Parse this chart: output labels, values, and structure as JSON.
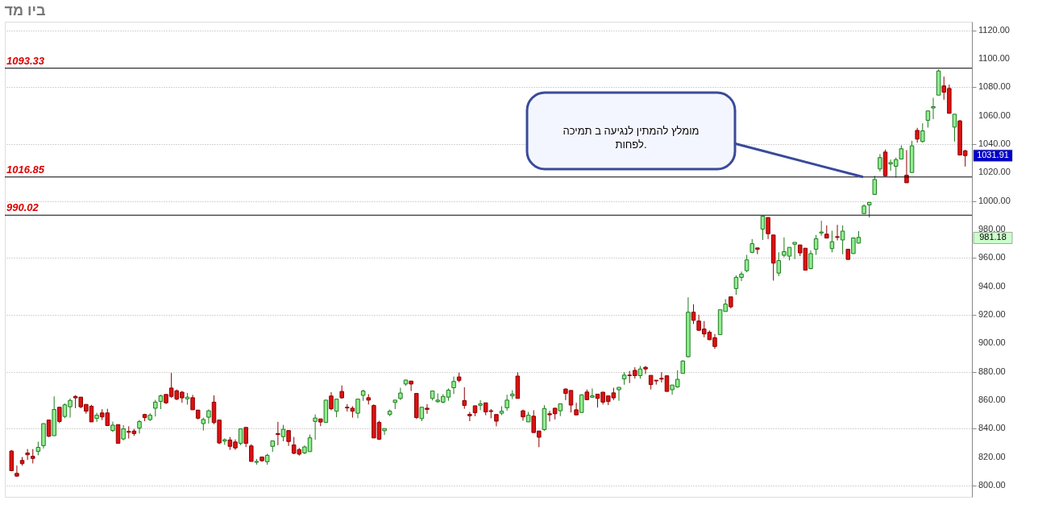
{
  "chart_data": {
    "type": "candlestick",
    "title": "ביו מד",
    "categories": [
      null,
      null,
      null,
      null,
      null,
      null,
      null,
      null,
      null,
      null,
      null,
      null,
      null,
      null,
      null,
      null,
      null,
      null,
      null,
      null,
      null,
      null,
      null,
      null,
      null,
      null,
      null,
      null,
      null,
      null,
      null,
      null,
      null,
      null,
      null,
      null,
      null,
      null,
      null,
      null,
      null,
      null,
      null,
      null,
      null,
      null,
      null,
      null,
      null,
      null,
      null,
      null,
      null,
      null,
      null,
      null,
      null,
      null,
      null,
      null,
      null,
      null,
      null,
      null,
      null,
      null,
      null,
      null,
      null,
      null,
      null,
      null,
      null,
      null,
      null,
      null,
      null,
      null,
      null,
      null,
      null,
      null,
      null,
      null,
      null,
      null,
      null,
      null,
      null,
      null,
      null,
      null,
      null,
      null,
      null,
      null,
      null,
      null,
      null,
      null,
      null,
      null,
      null,
      null,
      null,
      null,
      null,
      null,
      null,
      null,
      null,
      null,
      null,
      null,
      null,
      null,
      null,
      null,
      null,
      null,
      null,
      null,
      null,
      null,
      null,
      null,
      null,
      null,
      null,
      null,
      null,
      null,
      null,
      null,
      null,
      null,
      null,
      null,
      null,
      null,
      null,
      null,
      null,
      null,
      null,
      null,
      null,
      null,
      null,
      null,
      null,
      null,
      null,
      null,
      null,
      null,
      null,
      null,
      null,
      null,
      null,
      null,
      null,
      null,
      null,
      null,
      null,
      null,
      null,
      null,
      null,
      null,
      null,
      null,
      null,
      null,
      null,
      null,
      null,
      null
    ],
    "ohlc": [
      [
        824.2,
        825,
        810,
        810.4
      ],
      [
        808.5,
        814,
        806,
        806.6
      ],
      [
        817.6,
        820,
        814,
        815.3
      ],
      [
        822.8,
        825.6,
        818,
        821.6
      ],
      [
        820.5,
        825.6,
        815.5,
        819
      ],
      [
        824,
        830.8,
        821.2,
        826.8
      ],
      [
        828,
        843.5,
        826,
        843.5
      ],
      [
        846,
        846,
        834,
        834.6
      ],
      [
        835,
        862.6,
        835,
        853.4
      ],
      [
        855,
        855,
        843.8,
        845
      ],
      [
        848.5,
        857.7,
        847.3,
        856.7
      ],
      [
        855.3,
        861.2,
        847.7,
        859.8
      ],
      [
        862.6,
        863.5,
        854.3,
        861.6
      ],
      [
        862.1,
        862.1,
        854.3,
        855.3
      ],
      [
        857,
        857,
        850.4,
        852.2
      ],
      [
        855.7,
        856.7,
        844.7,
        844.7
      ],
      [
        847.1,
        851.1,
        844.7,
        849.4
      ],
      [
        851,
        853.6,
        846,
        848.2
      ],
      [
        851,
        853.9,
        841.7,
        842.1
      ],
      [
        838.6,
        844.9,
        837.6,
        842.4
      ],
      [
        842.8,
        842.8,
        829.6,
        829.6
      ],
      [
        832.7,
        842.4,
        831.7,
        839.8
      ],
      [
        838,
        841.6,
        833,
        837.4
      ],
      [
        838.3,
        839.8,
        834.8,
        836.5
      ],
      [
        840.3,
        846.1,
        836.5,
        844.9
      ],
      [
        849.9,
        850.4,
        845.2,
        847.7
      ],
      [
        846.3,
        850.8,
        845.2,
        849.4
      ],
      [
        854.3,
        860.2,
        848.5,
        858.6
      ],
      [
        859.1,
        863.8,
        853.7,
        863
      ],
      [
        864,
        864,
        857.3,
        858.1
      ],
      [
        868.5,
        879.1,
        861.6,
        862.6
      ],
      [
        866.6,
        867.5,
        860,
        860.7
      ],
      [
        865.6,
        866.4,
        858.1,
        861.6
      ],
      [
        860.9,
        865,
        856.8,
        862.1
      ],
      [
        861.7,
        863.7,
        853.2,
        853.2
      ],
      [
        853,
        853,
        846.4,
        847.3
      ],
      [
        843.5,
        847.7,
        838.6,
        846.4
      ],
      [
        848,
        853.4,
        843.5,
        852.5
      ],
      [
        858.6,
        863.3,
        843,
        844.2
      ],
      [
        846,
        846,
        829,
        829.9
      ],
      [
        831.2,
        833.1,
        828.6,
        832.2
      ],
      [
        832,
        834.1,
        825,
        827.5
      ],
      [
        830.6,
        832.4,
        825,
        826.4
      ],
      [
        829.6,
        839.8,
        828.3,
        839.8
      ],
      [
        840.8,
        840.8,
        827,
        829.6
      ],
      [
        827.8,
        829,
        816.9,
        816.9
      ],
      [
        816.3,
        818.6,
        814.6,
        816.9
      ],
      [
        820,
        820,
        816.6,
        817.4
      ],
      [
        816.7,
        822.3,
        814.6,
        821.2
      ],
      [
        827.5,
        831.3,
        823.6,
        831.3
      ],
      [
        836.5,
        844.7,
        828.3,
        835.8
      ],
      [
        834.3,
        842.6,
        831,
        839.5
      ],
      [
        838.6,
        838.6,
        827.8,
        830.9
      ],
      [
        828.5,
        834.1,
        822,
        822.6
      ],
      [
        825.2,
        826.4,
        821,
        822
      ],
      [
        822.9,
        828.1,
        822,
        827.1
      ],
      [
        823.8,
        835.8,
        823.8,
        833.5
      ],
      [
        845,
        850,
        832.2,
        847.4
      ],
      [
        846.8,
        846.8,
        841.7,
        844.6
      ],
      [
        844.3,
        860,
        844.3,
        860
      ],
      [
        862.9,
        865.6,
        852.9,
        853.9
      ],
      [
        852.2,
        860.7,
        848,
        860.7
      ],
      [
        866.1,
        870.3,
        861,
        861.6
      ],
      [
        855,
        857.2,
        852,
        854.5
      ],
      [
        854.3,
        855.7,
        847.7,
        852.2
      ],
      [
        850.8,
        860.7,
        847.3,
        860.7
      ],
      [
        863.3,
        867.3,
        859.5,
        866.4
      ],
      [
        861.7,
        864.2,
        856.9,
        860
      ],
      [
        856.2,
        857,
        833.4,
        833.4
      ],
      [
        844.3,
        845.5,
        832,
        832.5
      ],
      [
        838.5,
        840,
        835.5,
        840
      ],
      [
        849.9,
        853.4,
        848.7,
        852.2
      ],
      [
        858.4,
        860.3,
        853.7,
        860
      ],
      [
        861.2,
        868.7,
        860,
        865
      ],
      [
        871.3,
        874.4,
        870.1,
        874.1
      ],
      [
        873.4,
        873.4,
        866.4,
        871.3
      ],
      [
        864.7,
        864.7,
        846.8,
        847.7
      ],
      [
        847,
        855,
        845.2,
        855
      ],
      [
        854.3,
        857.2,
        850.4,
        853.5
      ],
      [
        861.2,
        866.4,
        859.8,
        866.4
      ],
      [
        858.9,
        864.7,
        858.1,
        860
      ],
      [
        858.6,
        864.2,
        857.7,
        862.6
      ],
      [
        862.1,
        868.2,
        859.5,
        867
      ],
      [
        868.7,
        876.6,
        864.3,
        873.1
      ],
      [
        876.3,
        879.3,
        872.5,
        873.9
      ],
      [
        859.7,
        869,
        853.9,
        856.3
      ],
      [
        850,
        851.7,
        845.2,
        849
      ],
      [
        856,
        856,
        848.7,
        851.1
      ],
      [
        856.3,
        860,
        852.9,
        857.4
      ],
      [
        858.1,
        858.1,
        849.4,
        851.7
      ],
      [
        852.5,
        853.7,
        847.3,
        852
      ],
      [
        849.9,
        849.9,
        841.6,
        845.2
      ],
      [
        850.8,
        855.7,
        849.4,
        852.2
      ],
      [
        854.6,
        863.8,
        852.5,
        860
      ],
      [
        863,
        867,
        860.7,
        864.2
      ],
      [
        876.9,
        879.5,
        861.2,
        861.2
      ],
      [
        852.5,
        853.4,
        845.5,
        848.2
      ],
      [
        844.7,
        851.7,
        844.7,
        849.4
      ],
      [
        848.7,
        852.9,
        837.2,
        837.2
      ],
      [
        838.3,
        838.3,
        826.9,
        833.9
      ],
      [
        839.3,
        856.5,
        838.4,
        854.1
      ],
      [
        850.4,
        852.5,
        845,
        849.7
      ],
      [
        854.3,
        854.6,
        846.4,
        850.4
      ],
      [
        852.5,
        857.7,
        848.7,
        857.4
      ],
      [
        867.8,
        868.2,
        860,
        864.7
      ],
      [
        866.8,
        866.8,
        851.3,
        856.5
      ],
      [
        853.2,
        858.1,
        849.6,
        849.6
      ],
      [
        851.3,
        864.2,
        851.3,
        863.7
      ],
      [
        865.7,
        867.5,
        860.3,
        860.3
      ],
      [
        862,
        868.2,
        861.5,
        863
      ],
      [
        864.2,
        864.2,
        854.8,
        861.2
      ],
      [
        865.6,
        865.6,
        856.9,
        858.6
      ],
      [
        863,
        863,
        856.5,
        859
      ],
      [
        865.1,
        868.7,
        860,
        861.6
      ],
      [
        867.3,
        869,
        859.5,
        869
      ],
      [
        874.9,
        879.7,
        870.8,
        877.6
      ],
      [
        877.6,
        880.5,
        872,
        877.2
      ],
      [
        880.9,
        883.1,
        875.1,
        877.2
      ],
      [
        877.2,
        884,
        875.1,
        881.9
      ],
      [
        883.1,
        884,
        878.4,
        881.9
      ],
      [
        877.4,
        877.4,
        867.5,
        870.9
      ],
      [
        874,
        874,
        870.9,
        873.5
      ],
      [
        875.3,
        879.7,
        872.4,
        874.8
      ],
      [
        877.1,
        877.1,
        866.1,
        866.1
      ],
      [
        867.3,
        870.6,
        863.8,
        870.6
      ],
      [
        869.3,
        881,
        868.7,
        874.6
      ],
      [
        878.8,
        888,
        878.8,
        887.5
      ],
      [
        890.5,
        932.3,
        890,
        921.8
      ],
      [
        921.8,
        927.4,
        913.5,
        916.1
      ],
      [
        915.6,
        920,
        908.6,
        909.1
      ],
      [
        910,
        915.6,
        904.2,
        906.5
      ],
      [
        907.7,
        909,
        902.1,
        902.5
      ],
      [
        903.9,
        906.5,
        896,
        897.7
      ],
      [
        906,
        923.5,
        906,
        923.5
      ],
      [
        922.3,
        931,
        922.3,
        927.5
      ],
      [
        932.6,
        932.6,
        924.4,
        925.6
      ],
      [
        938.4,
        947.7,
        934,
        946.3
      ],
      [
        946.3,
        950.4,
        943.7,
        948.6
      ],
      [
        951,
        962.1,
        949.8,
        958.6
      ],
      [
        963.9,
        973.2,
        963.3,
        970
      ],
      [
        967,
        967,
        962.6,
        966
      ],
      [
        980.2,
        989.3,
        972.6,
        989.3
      ],
      [
        988.4,
        988.4,
        973.2,
        977
      ],
      [
        976.1,
        976.1,
        944,
        956.3
      ],
      [
        949.3,
        963.9,
        947.2,
        958.1
      ],
      [
        961.8,
        974.4,
        960.4,
        964.4
      ],
      [
        961.2,
        967.4,
        958.2,
        967.4
      ],
      [
        969.6,
        970.9,
        959.1,
        970.9
      ],
      [
        969.1,
        969.1,
        961.2,
        963.5
      ],
      [
        966.8,
        966.8,
        951.4,
        951.4
      ],
      [
        952.5,
        965.3,
        951.9,
        963
      ],
      [
        966,
        976.1,
        962.1,
        973.5
      ],
      [
        977.5,
        986.1,
        975.6,
        978.2
      ],
      [
        976.7,
        982.8,
        973.9,
        973.9
      ],
      [
        966.5,
        979.1,
        963.9,
        971.4
      ],
      [
        974.9,
        983.2,
        972.3,
        974.4
      ],
      [
        972.6,
        982.8,
        962.5,
        978.8
      ],
      [
        966.1,
        966.1,
        958.9,
        958.9
      ],
      [
        963,
        974,
        963,
        974
      ],
      [
        970.4,
        978.8,
        970,
        974.4
      ],
      [
        991.1,
        997.5,
        991.1,
        996.5
      ],
      [
        997.2,
        999,
        988.4,
        999
      ],
      [
        1004.6,
        1017.7,
        1004.6,
        1015.1
      ],
      [
        1022.5,
        1033,
        1020.7,
        1030.5
      ],
      [
        1034.4,
        1036.1,
        1017.7,
        1017.7
      ],
      [
        1026,
        1029.1,
        1021.2,
        1027
      ],
      [
        1024.4,
        1030.5,
        1016.5,
        1029.1
      ],
      [
        1029.5,
        1039.1,
        1029.5,
        1036.7
      ],
      [
        1018.1,
        1035.8,
        1012.8,
        1012.8
      ],
      [
        1020,
        1042.3,
        1020,
        1038.8
      ],
      [
        1049.6,
        1051.4,
        1041,
        1043.5
      ],
      [
        1041.8,
        1054.6,
        1041,
        1049.3
      ],
      [
        1056.7,
        1063.3,
        1051.6,
        1063.3
      ],
      [
        1065.4,
        1072.6,
        1057.5,
        1066.3
      ],
      [
        1074.4,
        1092.6,
        1074.4,
        1091.4
      ],
      [
        1080.9,
        1087.4,
        1071.2,
        1076.5
      ],
      [
        1079.1,
        1081.8,
        1061.6,
        1061.6
      ],
      [
        1051.9,
        1061,
        1041.8,
        1061
      ],
      [
        1056.3,
        1057,
        1032.3,
        1032.3
      ],
      [
        1035.3,
        1036,
        1024.2,
        1031.91
      ]
    ],
    "ylim": [
      792,
      1126
    ],
    "yticks": [
      {
        "value": 800,
        "label": "800.00"
      },
      {
        "value": 820,
        "label": "820.00"
      },
      {
        "value": 840,
        "label": "840.00"
      },
      {
        "value": 860,
        "label": "860.00"
      },
      {
        "value": 880,
        "label": "880.00"
      },
      {
        "value": 900,
        "label": "900.00"
      },
      {
        "value": 920,
        "label": "920.00"
      },
      {
        "value": 940,
        "label": "940.00"
      },
      {
        "value": 960,
        "label": "960.00"
      },
      {
        "value": 980,
        "label": "980.00"
      },
      {
        "value": 1000,
        "label": "1000.00"
      },
      {
        "value": 1020,
        "label": "1020.00"
      },
      {
        "value": 1040,
        "label": "1040.00"
      },
      {
        "value": 1060,
        "label": "1060.00"
      },
      {
        "value": 1080,
        "label": "1080.00"
      },
      {
        "value": 1100,
        "label": "1100.00"
      },
      {
        "value": 1120,
        "label": "1120.00"
      }
    ],
    "ref_lines": [
      {
        "axis": "y",
        "value": 1093.33,
        "label": "1093.33",
        "color": "#000000"
      },
      {
        "axis": "y",
        "value": 1016.85,
        "label": "1016.85",
        "color": "#000000"
      },
      {
        "axis": "y",
        "value": 990.02,
        "label": "990.02",
        "color": "#000000"
      }
    ],
    "annotations": [
      "מומלץ להמתין לנגיעה ב תמיכה לפחות.",
      "1031.91",
      "981.18"
    ],
    "grid": "y",
    "tick_labels": "y"
  }
}
